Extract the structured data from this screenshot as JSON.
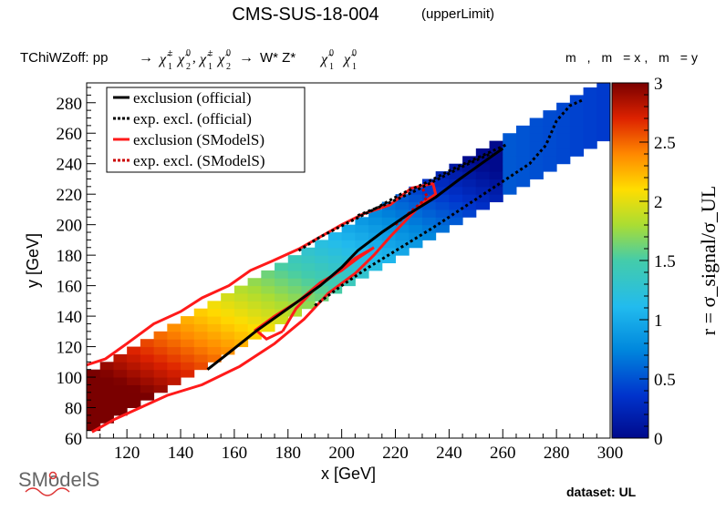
{
  "header": {
    "title": "CMS-SUS-18-004",
    "subtitle": "(upperLimit)",
    "process_prefix": "TChiWZoff: pp",
    "process_decay": "W* Z*",
    "mass_label": "m , m =x, m =y",
    "dataset": "dataset: UL",
    "logo": "SModelS"
  },
  "chart_data": {
    "type": "heatmap",
    "xlabel": "x [GeV]",
    "ylabel": "y [GeV]",
    "zlabel": "r = σ_signal/σ_UL",
    "xlim": [
      105,
      300
    ],
    "ylim": [
      60,
      293
    ],
    "zlim": [
      0,
      3
    ],
    "x_ticks": [
      120,
      140,
      160,
      180,
      200,
      220,
      240,
      260,
      280,
      300
    ],
    "y_ticks": [
      60,
      80,
      100,
      120,
      140,
      160,
      180,
      200,
      220,
      240,
      260,
      280
    ],
    "z_ticks": [
      "0",
      "0.5",
      "1",
      "1.5",
      "2",
      "2.5",
      "3"
    ],
    "legend": {
      "placement": "top-left",
      "entries": [
        {
          "label": "exclusion (official)",
          "color": "#000000",
          "style": "solid"
        },
        {
          "label": "exp. excl. (official)",
          "color": "#000000",
          "style": "dotted"
        },
        {
          "label": "exclusion (SModelS)",
          "color": "#ff1a1a",
          "style": "solid"
        },
        {
          "label": "exp. excl. (SModelS)",
          "color": "#cc0000",
          "style": "dotted"
        }
      ]
    },
    "band": {
      "bin_x": 5,
      "bin_y": 5,
      "x_start": 105,
      "x_end": 300,
      "dm_min": 5,
      "dm_max": 40
    },
    "curves": {
      "exclusion_official": [
        [
          150,
          105
        ],
        [
          158,
          116
        ],
        [
          168,
          130
        ],
        [
          180,
          145
        ],
        [
          192,
          160
        ],
        [
          200,
          172
        ],
        [
          206,
          183
        ],
        [
          215,
          195
        ],
        [
          225,
          207
        ],
        [
          235,
          218
        ],
        [
          244,
          230
        ],
        [
          252,
          240
        ],
        [
          260,
          250
        ]
      ],
      "exp_excl_official_upper": [
        [
          184,
          183
        ],
        [
          192,
          192
        ],
        [
          202,
          201
        ],
        [
          212,
          210
        ],
        [
          222,
          220
        ],
        [
          232,
          228
        ],
        [
          242,
          237
        ],
        [
          252,
          245
        ],
        [
          262,
          253
        ]
      ],
      "exp_excl_official_lower": [
        [
          190,
          147
        ],
        [
          200,
          160
        ],
        [
          210,
          172
        ],
        [
          222,
          185
        ],
        [
          234,
          198
        ],
        [
          246,
          212
        ],
        [
          258,
          226
        ],
        [
          270,
          240
        ],
        [
          276,
          252
        ],
        [
          280,
          268
        ],
        [
          285,
          278
        ],
        [
          290,
          282
        ]
      ],
      "exp_excl_official_upper2": [
        [
          206,
          206
        ],
        [
          216,
          213
        ],
        [
          226,
          221
        ],
        [
          236,
          230
        ],
        [
          246,
          239
        ],
        [
          256,
          247
        ]
      ],
      "exclusion_smodels_outer": [
        [
          107,
          64
        ],
        [
          115,
          72
        ],
        [
          125,
          80
        ],
        [
          135,
          88
        ],
        [
          148,
          95
        ],
        [
          162,
          107
        ],
        [
          175,
          122
        ],
        [
          186,
          138
        ],
        [
          195,
          155
        ],
        [
          205,
          168
        ],
        [
          212,
          180
        ],
        [
          218,
          192
        ],
        [
          224,
          203
        ],
        [
          230,
          214
        ],
        [
          235,
          220
        ],
        [
          234,
          227
        ],
        [
          226,
          224
        ],
        [
          218,
          213
        ],
        [
          208,
          207
        ],
        [
          200,
          200
        ],
        [
          192,
          192
        ],
        [
          184,
          184
        ],
        [
          174,
          176
        ],
        [
          166,
          170
        ],
        [
          158,
          160
        ],
        [
          148,
          152
        ],
        [
          140,
          143
        ],
        [
          130,
          135
        ],
        [
          120,
          122
        ],
        [
          112,
          112
        ],
        [
          105,
          108
        ]
      ],
      "exclusion_smodels_inner": [
        [
          178,
          130
        ],
        [
          172,
          125
        ],
        [
          168,
          131
        ],
        [
          175,
          140
        ],
        [
          184,
          150
        ],
        [
          192,
          162
        ],
        [
          200,
          170
        ],
        [
          206,
          178
        ],
        [
          212,
          185
        ],
        [
          205,
          178
        ],
        [
          198,
          168
        ],
        [
          190,
          158
        ],
        [
          183,
          145
        ],
        [
          178,
          130
        ]
      ],
      "exp_excl_smodels": [
        [
          220,
          200
        ],
        [
          224,
          206
        ],
        [
          228,
          212
        ],
        [
          232,
          218
        ],
        [
          230,
          224
        ]
      ]
    }
  }
}
